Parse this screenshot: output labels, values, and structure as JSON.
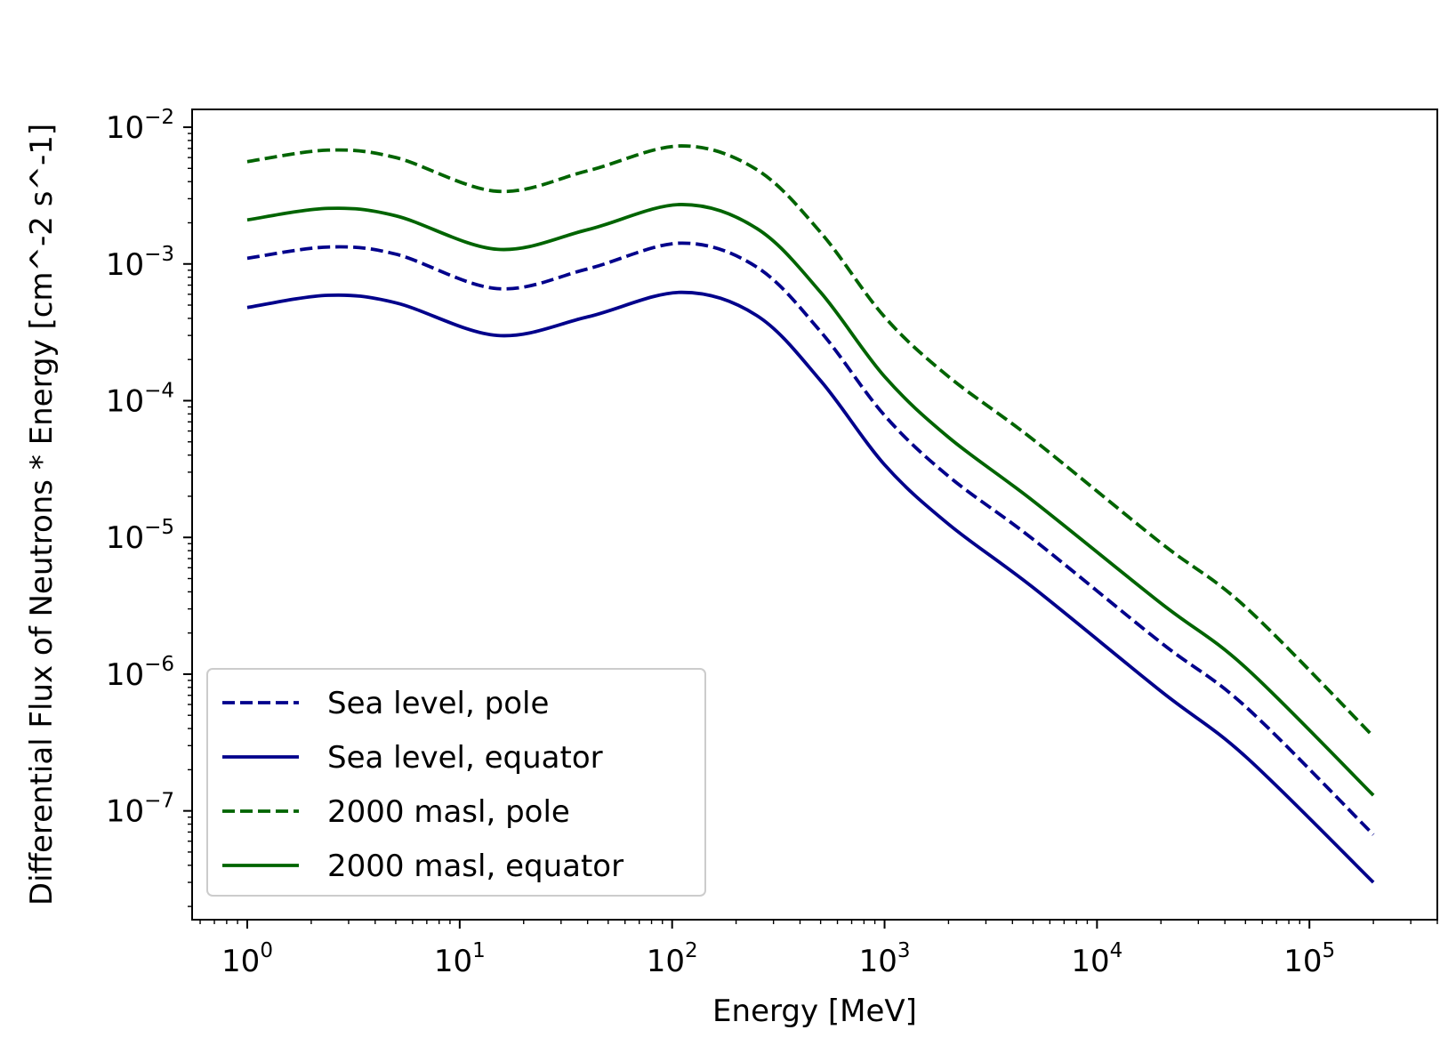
{
  "chart_data": {
    "type": "line",
    "title": "",
    "xlabel": "Energy [MeV]",
    "ylabel": "Differential Flux  of Neutrons * Energy [cm^-2 s^-1]",
    "xscale": "log",
    "yscale": "log",
    "xlim": [
      0.55,
      400000
    ],
    "ylim": [
      1.6e-08,
      0.0135
    ],
    "grid": false,
    "legend_position": "lower-left",
    "x_ticks": [
      {
        "value": 1,
        "base": "10",
        "exp": "0"
      },
      {
        "value": 10,
        "base": "10",
        "exp": "1"
      },
      {
        "value": 100,
        "base": "10",
        "exp": "2"
      },
      {
        "value": 1000,
        "base": "10",
        "exp": "3"
      },
      {
        "value": 10000,
        "base": "10",
        "exp": "4"
      },
      {
        "value": 100000,
        "base": "10",
        "exp": "5"
      }
    ],
    "y_ticks": [
      {
        "value": 1e-07,
        "base": "10",
        "exp": "−7"
      },
      {
        "value": 1e-06,
        "base": "10",
        "exp": "−6"
      },
      {
        "value": 1e-05,
        "base": "10",
        "exp": "−5"
      },
      {
        "value": 0.0001,
        "base": "10",
        "exp": "−4"
      },
      {
        "value": 0.001,
        "base": "10",
        "exp": "−3"
      },
      {
        "value": 0.01,
        "base": "10",
        "exp": "−2"
      }
    ],
    "x": [
      1,
      2.4,
      5,
      15,
      40,
      110,
      250,
      500,
      1000,
      2000,
      5000,
      20000,
      50000,
      200000
    ],
    "series": [
      {
        "name": "Sea level, pole",
        "color": "#00008b",
        "dash": "dashed",
        "values": [
          0.0011,
          0.00133,
          0.00118,
          0.00066,
          0.00092,
          0.00142,
          0.00095,
          0.00032,
          7.8e-05,
          2.8e-05,
          9.7e-06,
          1.7e-06,
          5.8e-07,
          6.7e-08
        ]
      },
      {
        "name": "Sea level, equator",
        "color": "#00008b",
        "dash": "solid",
        "values": [
          0.00048,
          0.00059,
          0.00052,
          0.0003,
          0.00041,
          0.00062,
          0.00042,
          0.00014,
          3.4e-05,
          1.25e-05,
          4.3e-06,
          7.5e-07,
          2.5e-07,
          3e-08
        ]
      },
      {
        "name": "2000 masl, pole",
        "color": "#006400",
        "dash": "dashed",
        "values": [
          0.0056,
          0.0068,
          0.006,
          0.0034,
          0.0048,
          0.0073,
          0.0049,
          0.0017,
          0.00041,
          0.00015,
          5.2e-05,
          9.1e-06,
          3.1e-06,
          3.5e-07
        ]
      },
      {
        "name": "2000 masl, equator",
        "color": "#006400",
        "dash": "solid",
        "values": [
          0.0021,
          0.00255,
          0.00225,
          0.00128,
          0.00178,
          0.00272,
          0.00182,
          0.00062,
          0.00015,
          5.4e-05,
          1.85e-05,
          3.3e-06,
          1.12e-06,
          1.3e-07
        ]
      }
    ]
  }
}
